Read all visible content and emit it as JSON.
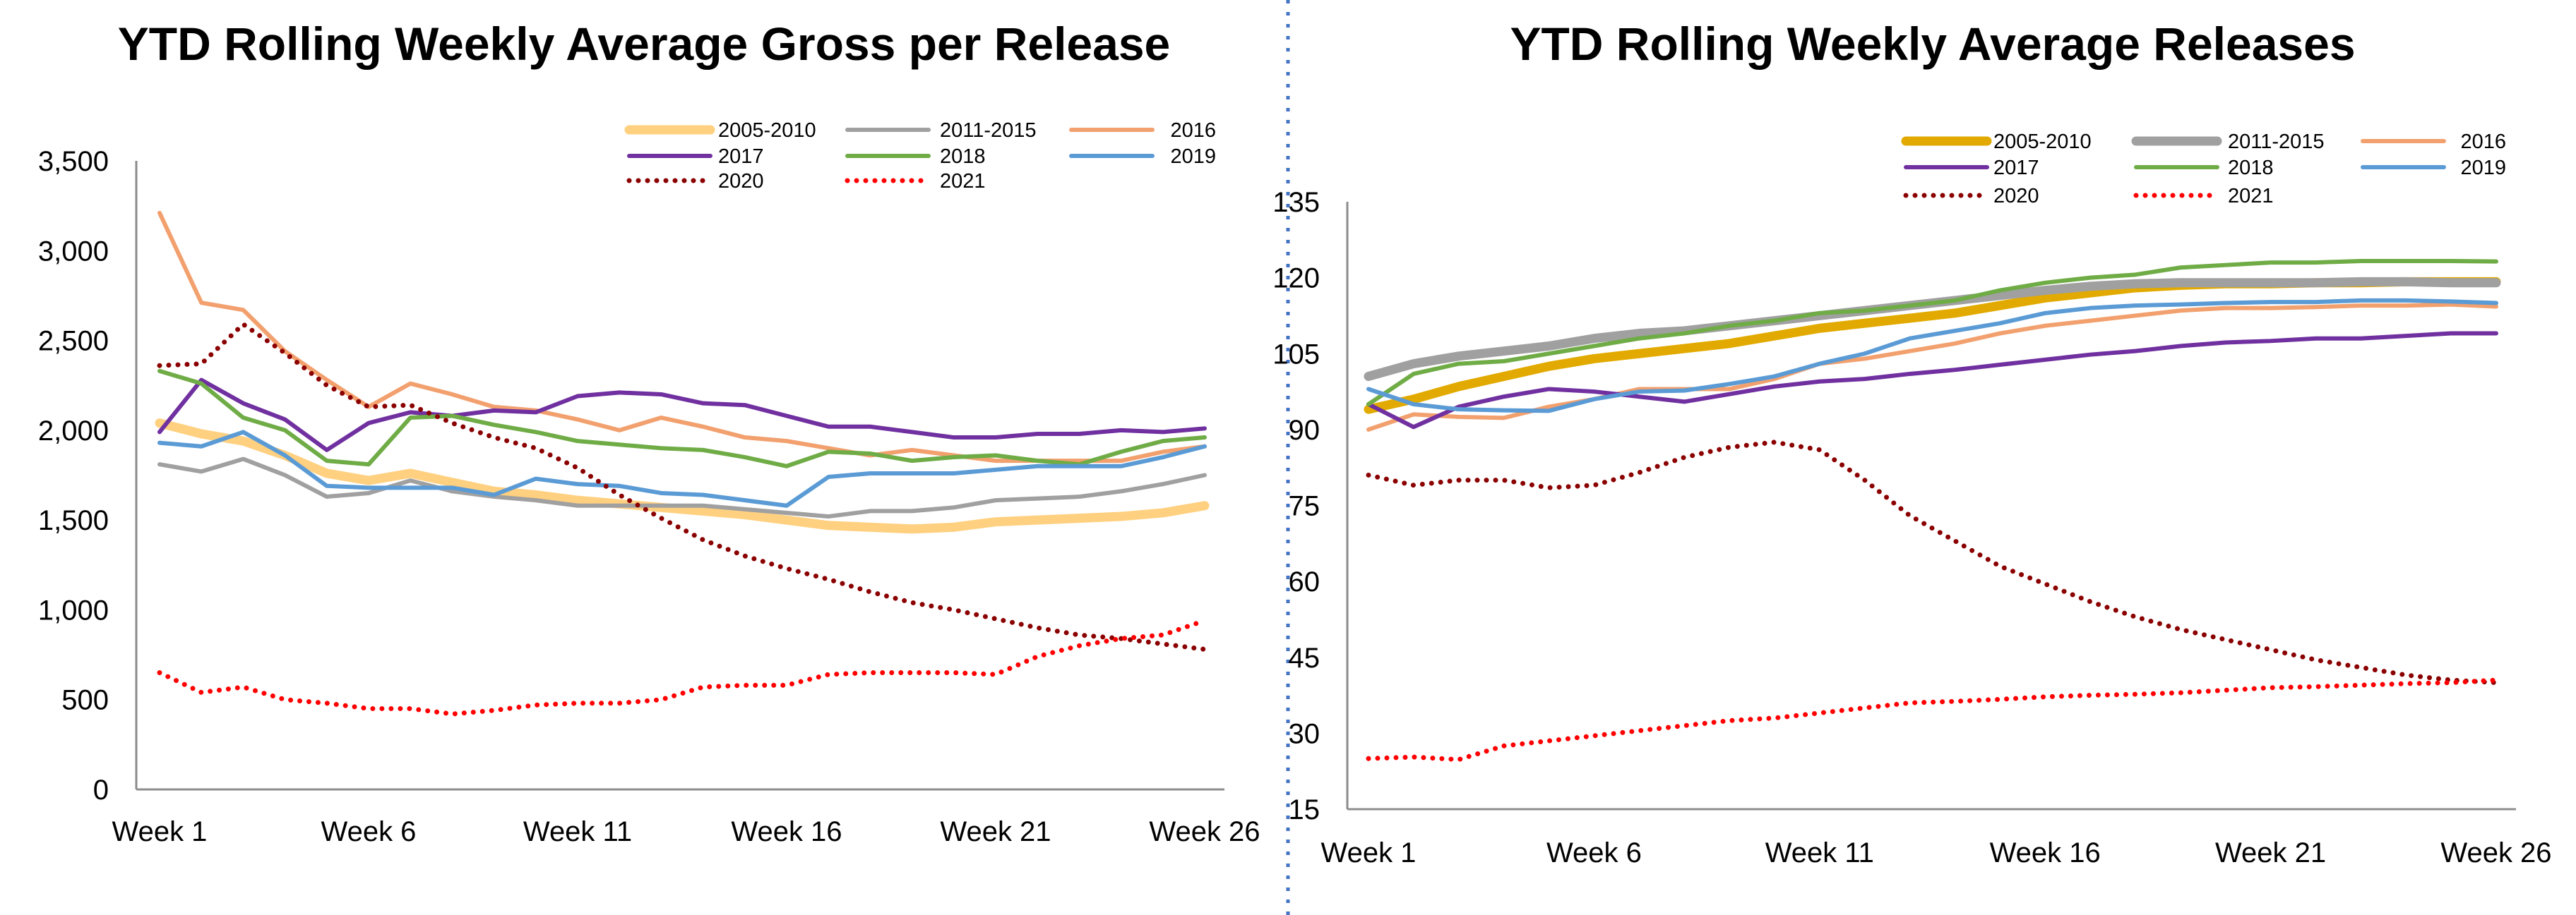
{
  "colors": {
    "2005-2010-left": "#FFD07F",
    "2005-2010-right": "#E2AA00",
    "2011-2015": "#A0A0A0",
    "2016": "#F2A06E",
    "2017": "#7030A0",
    "2018": "#6FAC46",
    "2019": "#5B9BD5",
    "2020": "#8B0000",
    "2021": "#FF0000",
    "divider": "#4472C4"
  },
  "chart_data": [
    {
      "type": "line",
      "title": "YTD Rolling Weekly Average Gross per Release",
      "xlabel": "",
      "ylabel": "",
      "ylim": [
        0,
        3500
      ],
      "yticks": [
        "0",
        "500",
        "1,000",
        "1,500",
        "2,000",
        "2,500",
        "3,000",
        "3,500"
      ],
      "ytick_values": [
        0,
        500,
        1000,
        1500,
        2000,
        2500,
        3000,
        3500
      ],
      "xticks": [
        "Week 1",
        "Week 6",
        "Week 11",
        "Week 16",
        "Week 21",
        "Week 26"
      ],
      "x": [
        1,
        2,
        3,
        4,
        5,
        6,
        7,
        8,
        9,
        10,
        11,
        12,
        13,
        14,
        15,
        16,
        17,
        18,
        19,
        20,
        21,
        22,
        23,
        24,
        25,
        26
      ],
      "grid": false,
      "legend_position": "top-right",
      "series": [
        {
          "name": "2005-2010",
          "style": "thick",
          "values": [
            2040,
            1980,
            1940,
            1860,
            1760,
            1720,
            1760,
            1710,
            1660,
            1640,
            1610,
            1590,
            1570,
            1550,
            1530,
            1500,
            1470,
            1460,
            1450,
            1460,
            1490,
            1500,
            1510,
            1520,
            1540,
            1580
          ]
        },
        {
          "name": "2011-2015",
          "style": "solid",
          "values": [
            1810,
            1770,
            1840,
            1750,
            1630,
            1650,
            1720,
            1660,
            1630,
            1610,
            1580,
            1580,
            1580,
            1580,
            1560,
            1540,
            1520,
            1550,
            1550,
            1570,
            1610,
            1620,
            1630,
            1660,
            1700,
            1750
          ]
        },
        {
          "name": "2016",
          "style": "solid",
          "values": [
            3210,
            2710,
            2670,
            2440,
            2280,
            2130,
            2260,
            2200,
            2130,
            2110,
            2060,
            2000,
            2070,
            2020,
            1960,
            1940,
            1900,
            1860,
            1890,
            1860,
            1830,
            1830,
            1830,
            1830,
            1880,
            1910
          ]
        },
        {
          "name": "2017",
          "style": "solid",
          "values": [
            1990,
            2280,
            2150,
            2060,
            1890,
            2040,
            2100,
            2080,
            2110,
            2100,
            2190,
            2210,
            2200,
            2150,
            2140,
            2080,
            2020,
            2020,
            1990,
            1960,
            1960,
            1980,
            1980,
            2000,
            1990,
            2010
          ]
        },
        {
          "name": "2018",
          "style": "solid",
          "values": [
            2330,
            2260,
            2070,
            2000,
            1830,
            1810,
            2070,
            2080,
            2030,
            1990,
            1940,
            1920,
            1900,
            1890,
            1850,
            1800,
            1880,
            1870,
            1830,
            1850,
            1860,
            1830,
            1810,
            1880,
            1940,
            1960
          ]
        },
        {
          "name": "2019",
          "style": "solid",
          "values": [
            1930,
            1910,
            1990,
            1860,
            1690,
            1680,
            1680,
            1680,
            1640,
            1730,
            1700,
            1690,
            1650,
            1640,
            1610,
            1580,
            1740,
            1760,
            1760,
            1760,
            1780,
            1800,
            1800,
            1800,
            1850,
            1910
          ]
        },
        {
          "name": "2020",
          "style": "dotted",
          "values": [
            2360,
            2370,
            2590,
            2430,
            2250,
            2130,
            2140,
            2040,
            1960,
            1900,
            1790,
            1640,
            1510,
            1390,
            1300,
            1230,
            1170,
            1100,
            1040,
            1000,
            950,
            900,
            860,
            840,
            810,
            780
          ]
        },
        {
          "name": "2021",
          "style": "dotted",
          "values": [
            650,
            540,
            570,
            500,
            480,
            450,
            450,
            420,
            440,
            470,
            480,
            480,
            500,
            570,
            580,
            580,
            640,
            650,
            650,
            650,
            640,
            740,
            800,
            840,
            860,
            940
          ]
        }
      ]
    },
    {
      "type": "line",
      "title": "YTD Rolling Weekly Average Releases",
      "xlabel": "",
      "ylabel": "",
      "ylim": [
        15,
        135
      ],
      "yticks": [
        "15",
        "30",
        "45",
        "60",
        "75",
        "90",
        "105",
        "120",
        "135"
      ],
      "ytick_values": [
        15,
        30,
        45,
        60,
        75,
        90,
        105,
        120,
        135
      ],
      "xticks": [
        "Week 1",
        "Week 6",
        "Week 11",
        "Week 16",
        "Week 21",
        "Week 26"
      ],
      "x": [
        1,
        2,
        3,
        4,
        5,
        6,
        7,
        8,
        9,
        10,
        11,
        12,
        13,
        14,
        15,
        16,
        17,
        18,
        19,
        20,
        21,
        22,
        23,
        24,
        25,
        26
      ],
      "grid": false,
      "legend_position": "top-right",
      "series": [
        {
          "name": "2005-2010",
          "style": "thick",
          "values": [
            94,
            96,
            98.5,
            100.5,
            102.5,
            104,
            105,
            106,
            107,
            108.5,
            110,
            111,
            112,
            113,
            114.5,
            116,
            117,
            118,
            118.5,
            118.8,
            118.8,
            119,
            119,
            119.2,
            119.2,
            119.2
          ]
        },
        {
          "name": "2011-2015",
          "style": "thick",
          "values": [
            100.5,
            103,
            104.5,
            105.5,
            106.5,
            108,
            109,
            109.5,
            110.5,
            111.5,
            112.5,
            113.5,
            114.5,
            115.5,
            116.5,
            117.5,
            118.3,
            118.8,
            119,
            119,
            119,
            119,
            119.2,
            119.2,
            119,
            119
          ]
        },
        {
          "name": "2016",
          "style": "solid",
          "values": [
            90,
            93,
            92.5,
            92.3,
            94.5,
            96,
            98,
            98,
            98,
            100,
            103,
            104,
            105.5,
            107,
            109,
            110.5,
            111.5,
            112.5,
            113.5,
            114,
            114,
            114.2,
            114.5,
            114.5,
            114.7,
            114.3
          ]
        },
        {
          "name": "2017",
          "style": "solid",
          "values": [
            95,
            90.5,
            94.5,
            96.5,
            98,
            97.5,
            96.5,
            95.5,
            97,
            98.5,
            99.5,
            100,
            101,
            101.8,
            102.8,
            103.8,
            104.8,
            105.5,
            106.5,
            107.2,
            107.5,
            108,
            108,
            108.5,
            109,
            109
          ]
        },
        {
          "name": "2018",
          "style": "solid",
          "values": [
            95,
            101,
            103,
            103.5,
            105,
            106.5,
            108,
            109,
            110.5,
            111.5,
            113,
            113.5,
            114.5,
            115.5,
            117.5,
            119,
            120,
            120.6,
            122,
            122.5,
            123,
            123,
            123.3,
            123.3,
            123.3,
            123.2
          ]
        },
        {
          "name": "2019",
          "style": "solid",
          "values": [
            98,
            95,
            94,
            93.8,
            93.7,
            96,
            97.5,
            97.7,
            99,
            100.5,
            103,
            105,
            108,
            109.5,
            111,
            113,
            114,
            114.5,
            114.7,
            115,
            115.2,
            115.2,
            115.5,
            115.5,
            115.3,
            115
          ]
        },
        {
          "name": "2020",
          "style": "dotted",
          "values": [
            81,
            79,
            80,
            80,
            78.5,
            79,
            81.5,
            84.5,
            86.5,
            87.5,
            86,
            80,
            73,
            68,
            63,
            59.5,
            56,
            53,
            50.5,
            48.5,
            46.5,
            44.5,
            43,
            41.5,
            40.5,
            40
          ]
        },
        {
          "name": "2021",
          "style": "dotted",
          "values": [
            25,
            25.3,
            24.8,
            27.5,
            28.5,
            29.5,
            30.5,
            31.5,
            32.5,
            33,
            34,
            35,
            36,
            36.3,
            36.7,
            37.2,
            37.5,
            37.7,
            38,
            38.5,
            39,
            39.2,
            39.5,
            39.8,
            40,
            40.5
          ]
        }
      ]
    }
  ]
}
